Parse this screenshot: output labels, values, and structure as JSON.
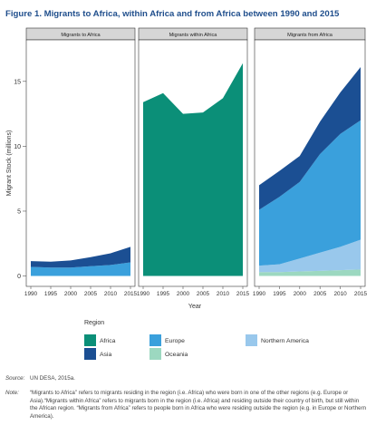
{
  "title": "Figure 1. Migrants to Africa, within Africa and from Africa between 1990 and 2015",
  "chart_data": {
    "type": "area",
    "stacked": true,
    "ylabel": "Migrant Stock (millions)",
    "xlabel": "Year",
    "ylim": [
      -0.8,
      18.2
    ],
    "xlim": [
      1990,
      2015
    ],
    "yticks": [
      0,
      5,
      10,
      15
    ],
    "xticks": [
      1990,
      1995,
      2000,
      2005,
      2010,
      2015
    ],
    "grid": false,
    "legend_position": "bottom",
    "legend_title": "Region",
    "x": [
      1990,
      1995,
      2000,
      2005,
      2010,
      2015
    ],
    "colors": {
      "Africa": "#0b8f78",
      "Asia": "#1b4f93",
      "Europe": "#3aa0dc",
      "Northern America": "#99c8ec",
      "Oceania": "#9cd8c0"
    },
    "legend": [
      "Africa",
      "Asia",
      "Europe",
      "Oceania",
      "Northern America"
    ],
    "panels": [
      {
        "title": "Migrants to Africa",
        "series": [
          {
            "name": "Europe",
            "values": [
              0.7,
              0.65,
              0.65,
              0.75,
              0.85,
              1.05
            ]
          },
          {
            "name": "Asia",
            "values": [
              0.45,
              0.45,
              0.55,
              0.7,
              0.9,
              1.2
            ]
          }
        ]
      },
      {
        "title": "Migrants within Africa",
        "series": [
          {
            "name": "Africa",
            "values": [
              13.4,
              14.1,
              12.5,
              12.6,
              13.7,
              16.4
            ]
          }
        ]
      },
      {
        "title": "Migrants from Africa",
        "series": [
          {
            "name": "Oceania",
            "values": [
              0.3,
              0.3,
              0.35,
              0.4,
              0.45,
              0.5
            ]
          },
          {
            "name": "Northern America",
            "values": [
              0.5,
              0.6,
              1.0,
              1.4,
              1.8,
              2.3
            ]
          },
          {
            "name": "Europe",
            "values": [
              4.3,
              5.2,
              5.9,
              7.6,
              8.7,
              9.2
            ]
          },
          {
            "name": "Asia",
            "values": [
              1.9,
              2.0,
              2.0,
              2.5,
              3.2,
              4.1
            ]
          }
        ]
      }
    ]
  },
  "source": {
    "label": "Source:",
    "text": "UN DESA, 2015a."
  },
  "note": {
    "label": "Note:",
    "text": "“Migrants to Africa” refers to migrants residing in the region (i.e. Africa) who were born in one of the other regions (e.g. Europe or Asia).“Migrants within Africa” refers to migrants born in the region (i.e. Africa) and residing outside their country of birth, but still within the African region. “Migrants from Africa” refers to people born in Africa who were residing outside the region (e.g. in Europe or Northern America)."
  }
}
